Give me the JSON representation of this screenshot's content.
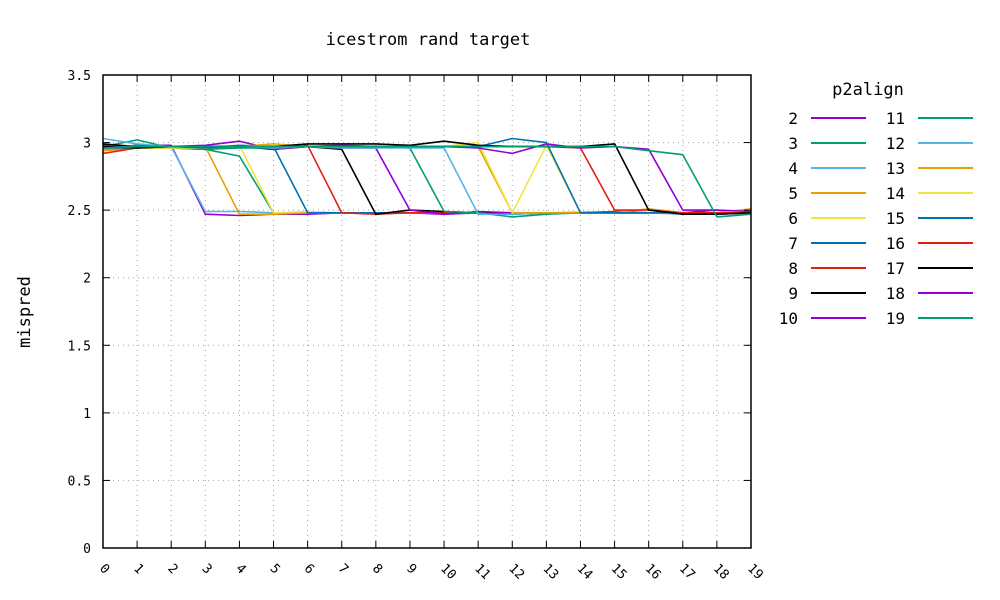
{
  "chart_data": {
    "type": "line",
    "title": "icestrom rand target",
    "xlabel": "",
    "ylabel": "mispred",
    "x": [
      0,
      1,
      2,
      3,
      4,
      5,
      6,
      7,
      8,
      9,
      10,
      11,
      12,
      13,
      14,
      15,
      16,
      17,
      18,
      19
    ],
    "x_tick_labels": [
      "0",
      "1",
      "2",
      "3",
      "4",
      "5",
      "6",
      "7",
      "8",
      "9",
      "10",
      "11",
      "12",
      "13",
      "14",
      "15",
      "16",
      "17",
      "18",
      "19"
    ],
    "ylim": [
      0,
      3.5
    ],
    "y_ticks": [
      0,
      0.5,
      1,
      1.5,
      2,
      2.5,
      3,
      3.5
    ],
    "y_tick_labels": [
      "0",
      "0.5",
      "1",
      "1.5",
      "2",
      "2.5",
      "3",
      "3.5"
    ],
    "grid": true,
    "legend": {
      "title": "p2align",
      "placement": "outside-right"
    },
    "series": [
      {
        "name": "2",
        "color": "#9400d3",
        "values": [
          2.96,
          2.98,
          2.98,
          2.47,
          2.46,
          2.47,
          2.47,
          2.48,
          2.48,
          2.48,
          2.47,
          2.48,
          2.47,
          2.48,
          2.48,
          2.48,
          2.48,
          2.48,
          2.48,
          2.48
        ]
      },
      {
        "name": "3",
        "color": "#009e73",
        "values": [
          2.97,
          3.02,
          2.96,
          2.95,
          2.9,
          2.48,
          2.48,
          2.48,
          2.48,
          2.48,
          2.48,
          2.48,
          2.47,
          2.48,
          2.48,
          2.48,
          2.48,
          2.48,
          2.47,
          2.48
        ]
      },
      {
        "name": "4",
        "color": "#56b4e9",
        "values": [
          3.03,
          2.99,
          2.97,
          2.49,
          2.49,
          2.48,
          2.48,
          2.48,
          2.48,
          2.48,
          2.48,
          2.48,
          2.48,
          2.48,
          2.48,
          2.48,
          2.48,
          2.48,
          2.48,
          2.48
        ]
      },
      {
        "name": "5",
        "color": "#e69f00",
        "values": [
          2.94,
          2.96,
          2.97,
          2.97,
          2.47,
          2.47,
          2.48,
          2.48,
          2.48,
          2.48,
          2.48,
          2.48,
          2.48,
          2.48,
          2.48,
          2.49,
          2.48,
          2.48,
          2.48,
          2.48
        ]
      },
      {
        "name": "6",
        "color": "#f0e442",
        "values": [
          2.95,
          2.97,
          2.97,
          2.97,
          2.98,
          2.48,
          2.49,
          2.48,
          2.48,
          2.48,
          2.48,
          2.48,
          2.48,
          2.48,
          2.49,
          2.48,
          2.48,
          2.48,
          2.48,
          2.48
        ]
      },
      {
        "name": "7",
        "color": "#0072b2",
        "values": [
          2.98,
          2.96,
          2.96,
          2.96,
          2.98,
          2.97,
          2.48,
          2.48,
          2.48,
          2.48,
          2.48,
          2.48,
          2.48,
          2.48,
          2.48,
          2.48,
          2.48,
          2.48,
          2.48,
          2.48
        ]
      },
      {
        "name": "8",
        "color": "#e51e10",
        "values": [
          2.92,
          2.96,
          2.97,
          2.95,
          2.97,
          2.97,
          2.98,
          2.48,
          2.47,
          2.48,
          2.48,
          2.48,
          2.48,
          2.48,
          2.48,
          2.49,
          2.48,
          2.48,
          2.48,
          2.48
        ]
      },
      {
        "name": "9",
        "color": "#000000",
        "values": [
          2.99,
          2.97,
          2.97,
          2.96,
          2.97,
          2.95,
          2.97,
          2.95,
          2.47,
          2.5,
          2.49,
          2.48,
          2.48,
          2.48,
          2.48,
          2.48,
          2.48,
          2.48,
          2.48,
          2.48
        ]
      },
      {
        "name": "10",
        "color": "#9400d3",
        "values": [
          2.95,
          2.96,
          2.97,
          2.98,
          3.01,
          2.95,
          2.97,
          2.96,
          2.96,
          2.5,
          2.47,
          2.49,
          2.48,
          2.48,
          2.48,
          2.48,
          2.48,
          2.48,
          2.5,
          2.48
        ]
      },
      {
        "name": "11",
        "color": "#009e73",
        "values": [
          2.95,
          2.98,
          2.96,
          2.95,
          2.96,
          2.96,
          2.97,
          2.97,
          2.97,
          2.96,
          2.49,
          2.48,
          2.45,
          2.47,
          2.48,
          2.48,
          2.48,
          2.48,
          2.47,
          2.48
        ]
      },
      {
        "name": "12",
        "color": "#56b4e9",
        "values": [
          2.96,
          2.97,
          2.97,
          2.96,
          2.97,
          2.96,
          2.97,
          2.96,
          2.96,
          2.96,
          2.96,
          2.47,
          2.47,
          2.48,
          2.48,
          2.48,
          2.48,
          2.47,
          2.47,
          2.48
        ]
      },
      {
        "name": "13",
        "color": "#e69f00",
        "values": [
          2.95,
          2.96,
          2.96,
          2.97,
          2.97,
          2.99,
          2.97,
          2.97,
          2.97,
          2.97,
          2.97,
          2.97,
          2.48,
          2.48,
          2.48,
          2.48,
          2.51,
          2.48,
          2.48,
          2.51
        ]
      },
      {
        "name": "14",
        "color": "#f0e442",
        "values": [
          2.96,
          2.96,
          2.96,
          2.96,
          2.97,
          2.98,
          2.97,
          2.97,
          2.97,
          2.97,
          2.97,
          3.0,
          2.48,
          2.98,
          2.48,
          2.48,
          2.48,
          2.48,
          2.48,
          2.49
        ]
      },
      {
        "name": "15",
        "color": "#0072b2",
        "values": [
          2.96,
          2.96,
          2.97,
          2.96,
          2.97,
          2.97,
          2.97,
          2.97,
          2.97,
          2.97,
          2.97,
          2.97,
          3.03,
          3.0,
          2.48,
          2.48,
          2.48,
          2.48,
          2.48,
          2.48
        ]
      },
      {
        "name": "16",
        "color": "#e51e10",
        "values": [
          2.96,
          2.97,
          2.97,
          2.97,
          2.97,
          2.97,
          2.97,
          2.97,
          2.97,
          2.97,
          2.97,
          2.97,
          2.97,
          2.97,
          2.96,
          2.5,
          2.5,
          2.48,
          2.48,
          2.48
        ]
      },
      {
        "name": "17",
        "color": "#000000",
        "values": [
          2.97,
          2.96,
          2.97,
          2.97,
          2.97,
          2.97,
          2.99,
          2.99,
          2.99,
          2.98,
          3.01,
          2.98,
          2.97,
          2.97,
          2.97,
          2.99,
          2.5,
          2.47,
          2.47,
          2.48
        ]
      },
      {
        "name": "18",
        "color": "#9400d3",
        "values": [
          2.96,
          2.97,
          2.97,
          2.97,
          2.97,
          2.97,
          2.97,
          2.98,
          2.97,
          2.97,
          2.97,
          2.96,
          2.92,
          2.99,
          2.96,
          2.97,
          2.95,
          2.5,
          2.5,
          2.49
        ]
      },
      {
        "name": "19",
        "color": "#009e73",
        "values": [
          2.96,
          2.97,
          2.97,
          2.97,
          2.97,
          2.97,
          2.97,
          2.97,
          2.97,
          2.97,
          2.97,
          2.97,
          2.97,
          2.97,
          2.97,
          2.97,
          2.94,
          2.91,
          2.45,
          2.47
        ]
      }
    ]
  }
}
